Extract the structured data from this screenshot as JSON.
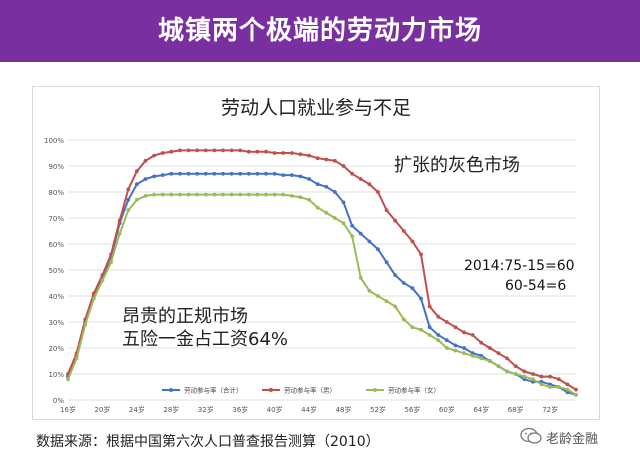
{
  "banner": {
    "title": "城镇两个极端的劳动力市场"
  },
  "chart_data": {
    "type": "line",
    "title": "劳动人口就业参与不足",
    "x": [
      16,
      17,
      18,
      19,
      20,
      21,
      22,
      23,
      24,
      25,
      26,
      27,
      28,
      29,
      30,
      31,
      32,
      33,
      34,
      35,
      36,
      37,
      38,
      39,
      40,
      41,
      42,
      43,
      44,
      45,
      46,
      47,
      48,
      49,
      50,
      51,
      52,
      53,
      54,
      55,
      56,
      57,
      58,
      59,
      60,
      61,
      62,
      63,
      64,
      65,
      66,
      67,
      68,
      69,
      70,
      71,
      72,
      73,
      74,
      75
    ],
    "x_tick_labels": [
      "16岁",
      "20岁",
      "24岁",
      "28岁",
      "32岁",
      "36岁",
      "40岁",
      "44岁",
      "48岁",
      "52岁",
      "56岁",
      "60岁",
      "64岁",
      "68岁",
      "72岁"
    ],
    "x_tick_values": [
      16,
      20,
      24,
      28,
      32,
      36,
      40,
      44,
      48,
      52,
      56,
      60,
      64,
      68,
      72
    ],
    "y_tick_labels": [
      "0%",
      "10%",
      "20%",
      "30%",
      "40%",
      "50%",
      "60%",
      "70%",
      "80%",
      "90%",
      "100%"
    ],
    "ylim": [
      0,
      100
    ],
    "series": [
      {
        "name": "劳动参与率（合计）",
        "color": "#4472c4",
        "values": [
          9,
          17,
          30,
          40,
          47,
          55,
          68,
          77,
          83,
          85,
          86,
          86.5,
          87,
          87,
          87,
          87,
          87,
          87,
          87,
          87,
          87,
          87,
          87,
          87,
          87,
          86.5,
          86.5,
          86,
          85,
          83,
          82,
          80,
          76,
          67,
          64,
          61,
          58,
          53,
          48,
          45,
          43,
          39,
          28,
          25,
          23,
          21,
          20,
          18,
          17,
          15,
          13,
          11,
          10,
          8,
          7,
          7,
          6,
          5,
          3,
          2
        ]
      },
      {
        "name": "劳动参与率（男）",
        "color": "#c0504d",
        "values": [
          10,
          18,
          31,
          41,
          48,
          56,
          69,
          81,
          88,
          92,
          94,
          95,
          95.5,
          96,
          96,
          96,
          96,
          96,
          96,
          96,
          96,
          95.5,
          95.5,
          95.5,
          95,
          95,
          95,
          94.5,
          94,
          93,
          92.5,
          92,
          90,
          87,
          85,
          83,
          80,
          73,
          69,
          65,
          61,
          56,
          36,
          32,
          30,
          28,
          26,
          25,
          22,
          20,
          18,
          16,
          13,
          11,
          10,
          9,
          9,
          8,
          6,
          4
        ]
      },
      {
        "name": "劳动参与率（女）",
        "color": "#9bbb59",
        "values": [
          8,
          16,
          29,
          39,
          46,
          53,
          64,
          73,
          77,
          78.5,
          79,
          79,
          79,
          79,
          79,
          79,
          79,
          79,
          79,
          79,
          79,
          79,
          79,
          79,
          79,
          79,
          78.5,
          78,
          77,
          74,
          72,
          70,
          68,
          63,
          47,
          42,
          40,
          38,
          36,
          31,
          28,
          27,
          25,
          23,
          20,
          19,
          18,
          17,
          16,
          15,
          13,
          11,
          10,
          9,
          8,
          6,
          5,
          5,
          4,
          2
        ]
      }
    ]
  },
  "annotations": {
    "grey_market": "扩张的灰色市场",
    "calc_line1": "2014:75-15=60",
    "calc_line2": "60-54=6",
    "formal_line1": "昂贵的正规市场",
    "formal_line2": "五险一金占工资64%"
  },
  "footer": {
    "source": "数据来源：根据中国第六次人口普查报告测算（2010）",
    "brand": "老龄金融"
  }
}
